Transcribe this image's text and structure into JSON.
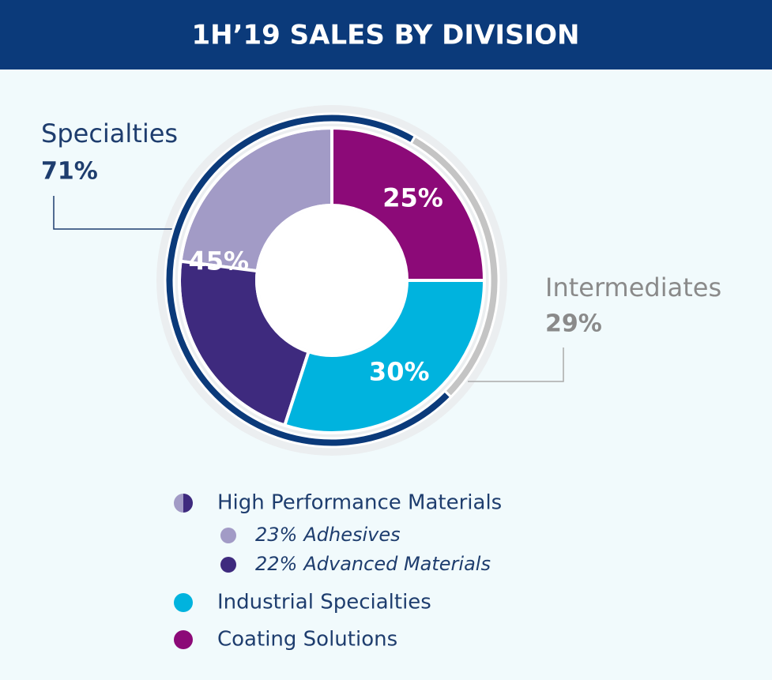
{
  "chart_data": {
    "type": "donut",
    "title": "1H’19 SALES BY DIVISION",
    "divisions": [
      {
        "name": "High Performance Materials",
        "value": 45,
        "value_label": "45%",
        "parts": [
          {
            "name": "Adhesives",
            "value": 23,
            "value_label": "23%",
            "color": "#a29bc6"
          },
          {
            "name": "Advanced Materials",
            "value": 22,
            "value_label": "22%",
            "color": "#3e2a7e"
          }
        ]
      },
      {
        "name": "Industrial Specialties",
        "value": 30,
        "value_label": "30%",
        "color": "#00b3de"
      },
      {
        "name": "Coating Solutions",
        "value": 25,
        "value_label": "25%",
        "color": "#8c0a78"
      }
    ],
    "outer": [
      {
        "name": "Specialties",
        "value": 71,
        "value_label": "71%",
        "color": "#0b3a7a"
      },
      {
        "name": "Intermediates",
        "value": 29,
        "value_label": "29%",
        "color": "#c4c4c4"
      }
    ]
  }
}
